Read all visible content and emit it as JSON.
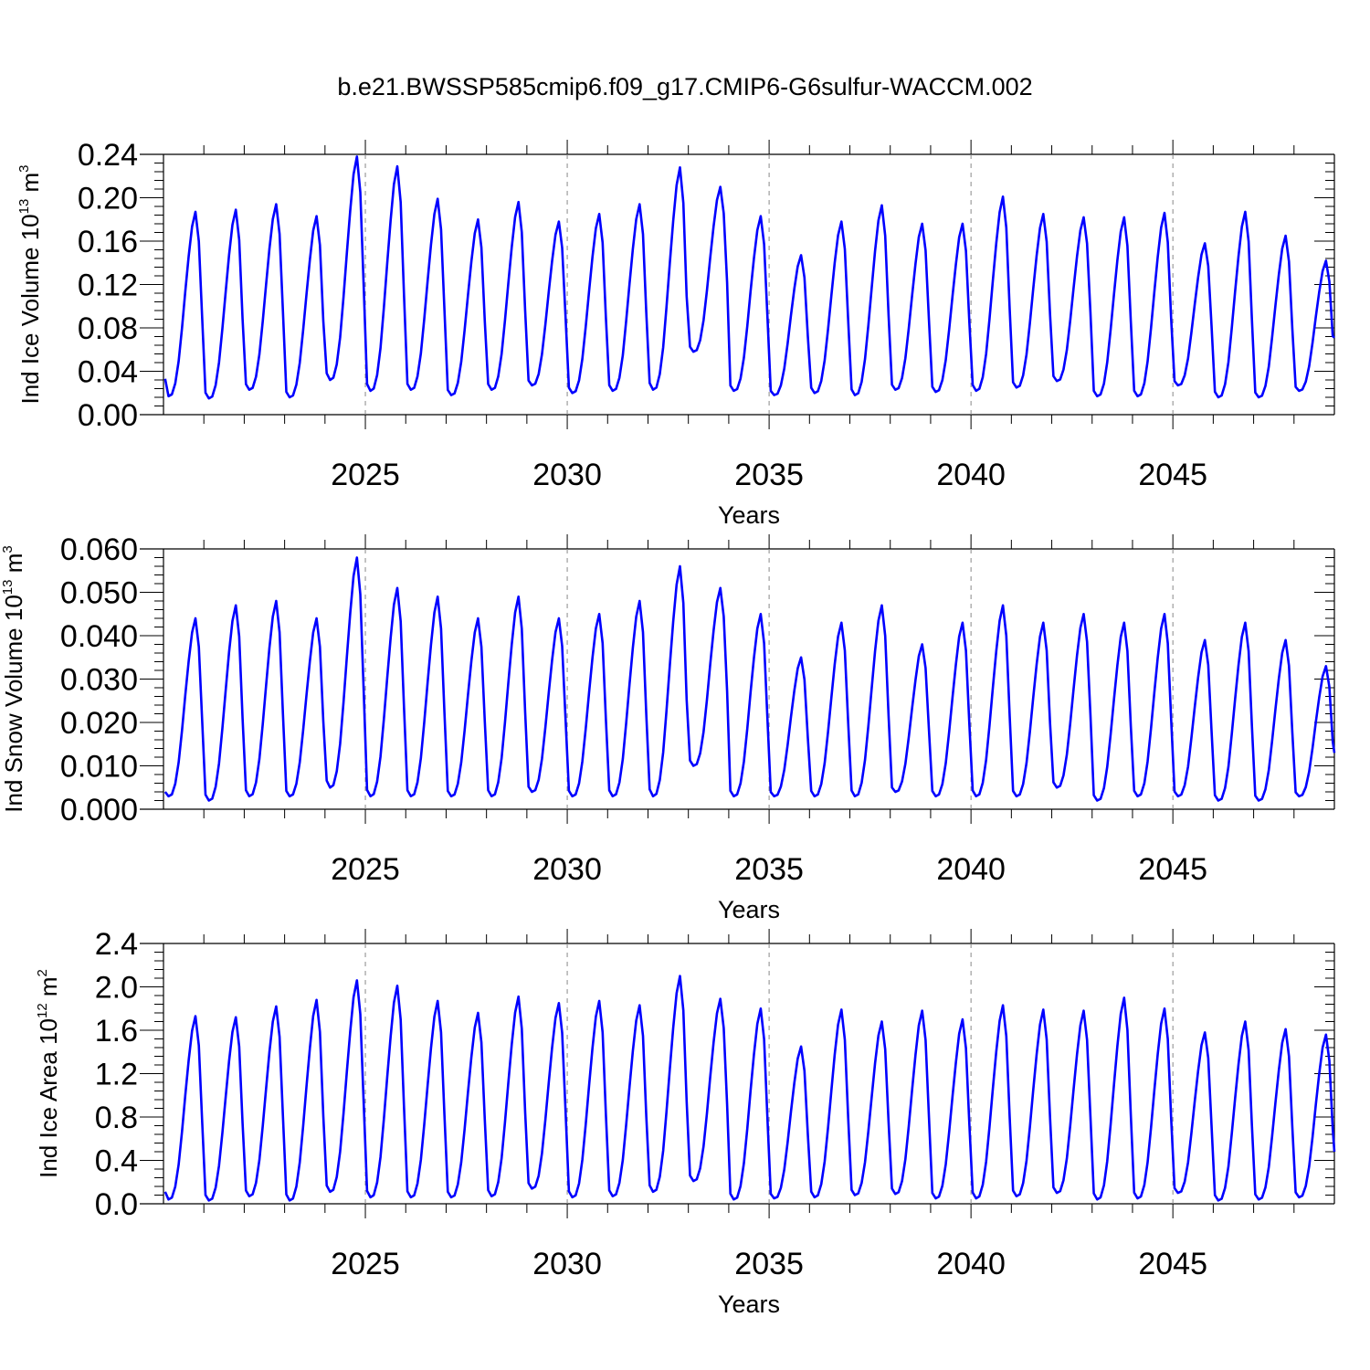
{
  "title": "b.e21.BWSSP585cmip6.f09_g17.CMIP6-G6sulfur-WACCM.002",
  "chart_data": [
    {
      "type": "line",
      "ylabel": {
        "main": "Ind Ice Volume 10",
        "sup": "13",
        "unit": " m",
        "unit_sup": "3"
      },
      "xlabel": "Years",
      "xlim": [
        2020,
        2049
      ],
      "ylim": [
        0,
        0.24
      ],
      "yticks": [
        0.0,
        0.04,
        0.08,
        0.12,
        0.16,
        0.2,
        0.24
      ],
      "ytick_labels": [
        "0.00",
        "0.04",
        "0.08",
        "0.12",
        "0.16",
        "0.20",
        "0.24"
      ],
      "xticks": [
        2025,
        2030,
        2035,
        2040,
        2045
      ],
      "xtick_labels": [
        "2025",
        "2030",
        "2035",
        "2040",
        "2045"
      ],
      "grid": "dashed vertical at 5-year ticks",
      "color": "#0000ff",
      "series": [
        {
          "yearly_max": [
            0.187,
            0.189,
            0.194,
            0.183,
            0.238,
            0.229,
            0.199,
            0.18,
            0.196,
            0.178,
            0.185,
            0.194,
            0.228,
            0.21,
            0.183,
            0.147,
            0.178,
            0.193,
            0.176,
            0.176,
            0.201,
            0.185,
            0.182,
            0.182,
            0.186,
            0.158,
            0.187,
            0.165,
            0.142
          ],
          "yearly_min": [
            0.017,
            0.015,
            0.023,
            0.016,
            0.032,
            0.022,
            0.023,
            0.018,
            0.023,
            0.027,
            0.02,
            0.022,
            0.023,
            0.058,
            0.022,
            0.018,
            0.02,
            0.018,
            0.023,
            0.021,
            0.022,
            0.025,
            0.031,
            0.017,
            0.017,
            0.027,
            0.016,
            0.016,
            0.022
          ],
          "start": 0.033,
          "end": 0.071
        }
      ]
    },
    {
      "type": "line",
      "ylabel": {
        "main": "Ind Snow Volume 10",
        "sup": "13",
        "unit": " m",
        "unit_sup": "3"
      },
      "xlabel": "Years",
      "xlim": [
        2020,
        2049
      ],
      "ylim": [
        0,
        0.06
      ],
      "yticks": [
        0.0,
        0.01,
        0.02,
        0.03,
        0.04,
        0.05,
        0.06
      ],
      "ytick_labels": [
        "0.000",
        "0.010",
        "0.020",
        "0.030",
        "0.040",
        "0.050",
        "0.060"
      ],
      "xticks": [
        2025,
        2030,
        2035,
        2040,
        2045
      ],
      "xtick_labels": [
        "2025",
        "2030",
        "2035",
        "2040",
        "2045"
      ],
      "grid": "dashed vertical at 5-year ticks",
      "color": "#0000ff",
      "series": [
        {
          "yearly_max": [
            0.044,
            0.047,
            0.048,
            0.044,
            0.058,
            0.051,
            0.049,
            0.044,
            0.049,
            0.044,
            0.045,
            0.048,
            0.056,
            0.051,
            0.045,
            0.035,
            0.043,
            0.047,
            0.038,
            0.043,
            0.047,
            0.043,
            0.045,
            0.043,
            0.045,
            0.039,
            0.043,
            0.039,
            0.033
          ],
          "yearly_min": [
            0.003,
            0.002,
            0.003,
            0.003,
            0.005,
            0.003,
            0.003,
            0.003,
            0.003,
            0.004,
            0.003,
            0.003,
            0.003,
            0.01,
            0.003,
            0.003,
            0.003,
            0.003,
            0.004,
            0.003,
            0.003,
            0.003,
            0.005,
            0.002,
            0.003,
            0.003,
            0.002,
            0.002,
            0.003
          ],
          "start": 0.004,
          "end": 0.013
        }
      ]
    },
    {
      "type": "line",
      "ylabel": {
        "main": "Ind Ice Area 10",
        "sup": "12",
        "unit": " m",
        "unit_sup": "2"
      },
      "xlabel": "Years",
      "xlim": [
        2020,
        2049
      ],
      "ylim": [
        0,
        2.4
      ],
      "yticks": [
        0.0,
        0.4,
        0.8,
        1.2,
        1.6,
        2.0,
        2.4
      ],
      "ytick_labels": [
        "0.0",
        "0.4",
        "0.8",
        "1.2",
        "1.6",
        "2.0",
        "2.4"
      ],
      "xticks": [
        2025,
        2030,
        2035,
        2040,
        2045
      ],
      "xtick_labels": [
        "2025",
        "2030",
        "2035",
        "2040",
        "2045"
      ],
      "grid": "dashed vertical at 5-year ticks",
      "color": "#0000ff",
      "series": [
        {
          "yearly_max": [
            1.73,
            1.72,
            1.82,
            1.88,
            2.06,
            2.01,
            1.87,
            1.76,
            1.91,
            1.85,
            1.87,
            1.83,
            2.1,
            1.89,
            1.8,
            1.45,
            1.79,
            1.68,
            1.78,
            1.7,
            1.83,
            1.79,
            1.78,
            1.9,
            1.8,
            1.58,
            1.68,
            1.61,
            1.56
          ],
          "yearly_min": [
            0.04,
            0.03,
            0.07,
            0.03,
            0.11,
            0.06,
            0.06,
            0.06,
            0.07,
            0.14,
            0.06,
            0.07,
            0.11,
            0.21,
            0.04,
            0.05,
            0.06,
            0.08,
            0.09,
            0.05,
            0.05,
            0.07,
            0.1,
            0.04,
            0.05,
            0.1,
            0.03,
            0.04,
            0.06
          ],
          "start": 0.11,
          "end": 0.48
        }
      ]
    }
  ]
}
